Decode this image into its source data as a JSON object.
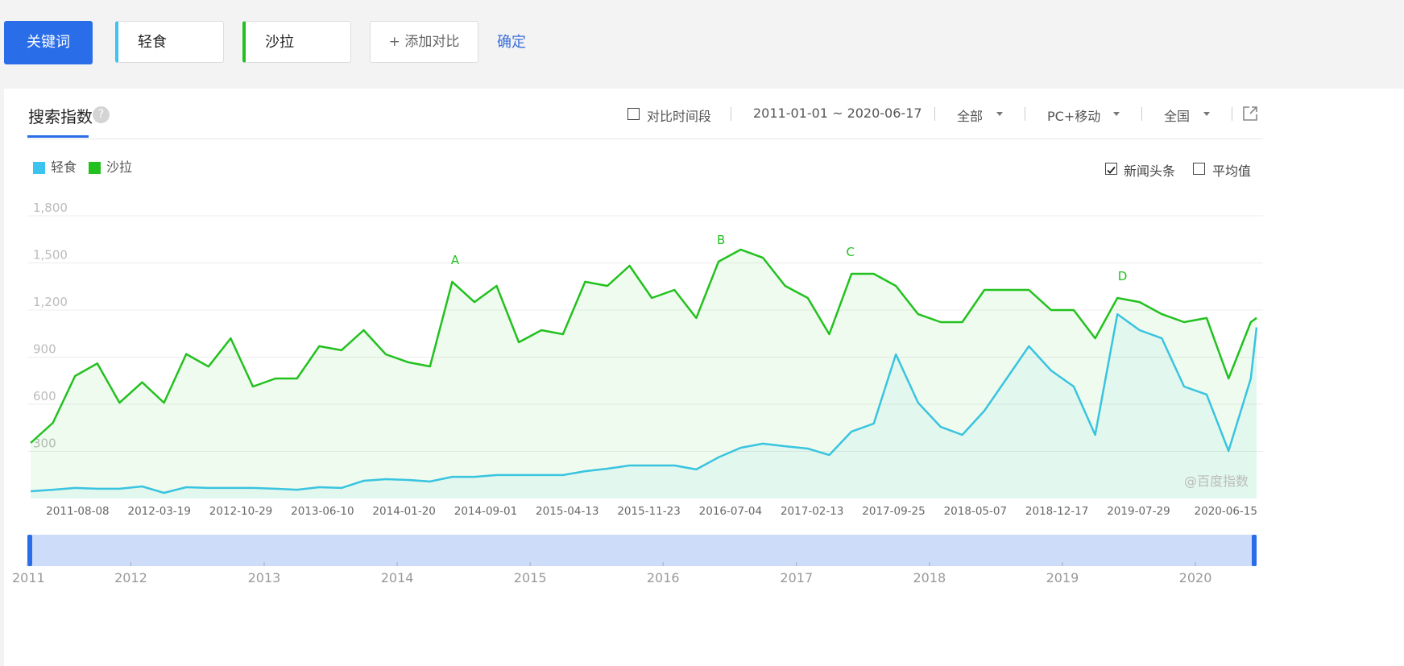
{
  "toolbar": {
    "keyword_button": "关键词",
    "keywords": [
      "轻食",
      "沙拉"
    ],
    "add_compare": "+ 添加对比",
    "confirm": "确定"
  },
  "tab": {
    "title": "搜索指数",
    "help": "?"
  },
  "controls": {
    "compare_period": {
      "label": "对比时间段",
      "checked": false
    },
    "date_range": "2011-01-01 ~ 2020-06-17",
    "dropdowns": [
      "全部",
      "PC+移动",
      "全国"
    ]
  },
  "options": [
    {
      "label": "新闻头条",
      "checked": true
    },
    {
      "label": "平均值",
      "checked": false
    }
  ],
  "watermark": "@百度指数",
  "navigator": {
    "years": [
      "2011",
      "2012",
      "2013",
      "2014",
      "2015",
      "2016",
      "2017",
      "2018",
      "2019",
      "2020"
    ]
  },
  "chart_data": {
    "type": "line",
    "x": [
      "2011-04-01",
      "2011-06-01",
      "2011-08-01",
      "2011-10-01",
      "2011-12-01",
      "2012-02-01",
      "2012-04-01",
      "2012-06-01",
      "2012-08-01",
      "2012-10-01",
      "2012-12-01",
      "2013-02-01",
      "2013-04-01",
      "2013-06-01",
      "2013-08-01",
      "2013-10-01",
      "2013-12-01",
      "2014-02-01",
      "2014-04-01",
      "2014-06-01",
      "2014-08-01",
      "2014-10-01",
      "2014-12-01",
      "2015-02-01",
      "2015-04-01",
      "2015-06-01",
      "2015-08-01",
      "2015-10-01",
      "2015-12-01",
      "2016-02-01",
      "2016-04-01",
      "2016-06-01",
      "2016-08-01",
      "2016-10-01",
      "2016-12-01",
      "2017-02-01",
      "2017-04-01",
      "2017-06-01",
      "2017-08-01",
      "2017-10-01",
      "2017-12-01",
      "2018-02-01",
      "2018-04-01",
      "2018-06-01",
      "2018-08-01",
      "2018-10-01",
      "2018-12-01",
      "2019-02-01",
      "2019-04-01",
      "2019-06-01",
      "2019-08-01",
      "2019-10-01",
      "2019-12-01",
      "2020-02-01",
      "2020-04-01",
      "2020-06-01",
      "2020-06-17"
    ],
    "series": [
      {
        "name": "轻食",
        "color": "#3cc4ef",
        "values": [
          46,
          56,
          67,
          62,
          62,
          77,
          36,
          72,
          67,
          67,
          67,
          62,
          56,
          72,
          67,
          113,
          123,
          118,
          108,
          138,
          138,
          149,
          149,
          149,
          149,
          174,
          190,
          210,
          210,
          210,
          185,
          262,
          323,
          349,
          333,
          318,
          277,
          426,
          477,
          918,
          610,
          456,
          405,
          559,
          764,
          970,
          815,
          713,
          405,
          1174,
          1072,
          1020,
          713,
          662,
          303,
          764,
          1090
        ]
      },
      {
        "name": "沙拉",
        "color": "#22c11f",
        "values": [
          354,
          482,
          780,
          860,
          610,
          740,
          610,
          920,
          840,
          1020,
          713,
          764,
          764,
          970,
          944,
          1072,
          918,
          867,
          841,
          1380,
          1251,
          1354,
          995,
          1072,
          1046,
          1380,
          1354,
          1482,
          1277,
          1328,
          1149,
          1508,
          1585,
          1533,
          1354,
          1277,
          1046,
          1431,
          1431,
          1354,
          1174,
          1123,
          1123,
          1328,
          1328,
          1328,
          1200,
          1200,
          1020,
          1277,
          1251,
          1174,
          1123,
          1149,
          764,
          1123,
          1150
        ]
      }
    ],
    "xlim": [
      "2011-03-23",
      "2020-06-17"
    ],
    "xticks": [
      "2011-08-08",
      "2012-03-19",
      "2012-10-29",
      "2013-06-10",
      "2014-01-20",
      "2014-09-01",
      "2015-04-13",
      "2015-11-23",
      "2016-07-04",
      "2017-02-13",
      "2017-09-25",
      "2018-05-07",
      "2018-12-17",
      "2019-07-29",
      "2020-06-15"
    ],
    "ylim": [
      0,
      1800
    ],
    "yticks": [
      300,
      600,
      900,
      {
        "value": 1200,
        "label": "1,200"
      },
      {
        "value": 1500,
        "label": "1,500"
      },
      {
        "value": 1800,
        "label": "1,800"
      }
    ],
    "grid": true,
    "legend": "top-left",
    "annotations": [
      {
        "text": "A",
        "x": "2014-06-09"
      },
      {
        "text": "B",
        "x": "2016-06-08"
      },
      {
        "text": "C",
        "x": "2017-05-29"
      },
      {
        "text": "D",
        "x": "2019-06-15"
      }
    ]
  }
}
